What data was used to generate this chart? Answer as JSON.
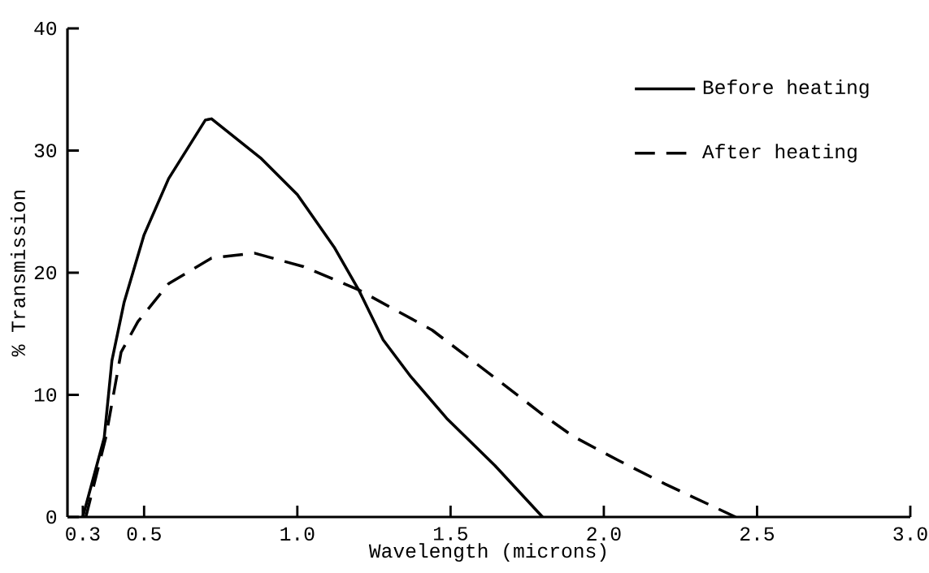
{
  "chart_data": {
    "type": "line",
    "xlabel": "Wavelength (microns)",
    "ylabel": "% Transmission",
    "xlim": [
      0.25,
      3.0
    ],
    "ylim": [
      0,
      40
    ],
    "xticks": [
      0.3,
      0.5,
      {
        "value": 1,
        "label": "1.0"
      },
      1.5,
      {
        "value": 2,
        "label": "2.0"
      },
      2.5,
      {
        "value": 3,
        "label": "3.0"
      }
    ],
    "yticks": [
      0,
      10,
      20,
      30,
      40
    ],
    "legend": "top right",
    "grid": false,
    "marker": "none",
    "series": [
      {
        "name": "Before heating",
        "color": "#000000",
        "line_style": "solid",
        "x": [
          0.3,
          0.37,
          0.395,
          0.435,
          0.5,
          0.58,
          0.7,
          0.72,
          0.88,
          1.0,
          1.12,
          1.2,
          1.28,
          1.37,
          1.49,
          1.645,
          1.8
        ],
        "values": [
          0,
          6.5,
          12.8,
          17.6,
          23.1,
          27.7,
          32.5,
          32.6,
          29.4,
          26.4,
          22.1,
          18.6,
          14.5,
          11.5,
          8.0,
          4.2,
          0
        ]
      },
      {
        "name": "After heating",
        "color": "#000000",
        "line_style": "dashed",
        "x": [
          0.31,
          0.375,
          0.425,
          0.48,
          0.58,
          0.72,
          0.86,
          1.02,
          1.2,
          1.44,
          1.655,
          1.81,
          1.9,
          2.05,
          2.2,
          2.43
        ],
        "values": [
          0,
          6.5,
          13.5,
          16.0,
          19.1,
          21.2,
          21.6,
          20.5,
          18.6,
          15.3,
          11.2,
          8.2,
          6.6,
          4.6,
          2.7,
          0
        ]
      }
    ]
  }
}
